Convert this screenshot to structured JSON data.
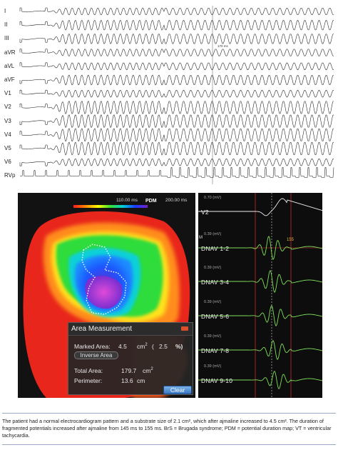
{
  "ecg": {
    "leads": [
      "I",
      "II",
      "III",
      "aVR",
      "aVL",
      "aVF",
      "V1",
      "V2",
      "V3",
      "V4",
      "V5",
      "V6",
      "RVp"
    ],
    "marker_label": "170 ms"
  },
  "pdm_map": {
    "scale_min": "110.00 ms",
    "scale_title": "PDM",
    "scale_max": "200.00 ms",
    "area_dialog": {
      "title": "Area Measurement",
      "marked_area_label": "Marked Area:",
      "marked_area_value": "4.5",
      "marked_area_unit": "cm",
      "marked_area_exponent": "2",
      "marked_area_percent": "2.5",
      "percent_sign": "%)",
      "open_paren": "(",
      "inverse_area_label": "Inverse Area",
      "total_area_label": "Total Area:",
      "total_area_value": "179.7",
      "total_area_unit": "cm",
      "total_area_exponent": "2",
      "perimeter_label": "Perimeter:",
      "perimeter_value": "13.6",
      "perimeter_unit": "cm",
      "clear_label": "Clear"
    }
  },
  "egm": {
    "channels": [
      {
        "label": "V2",
        "mv": "0.70 (mV)"
      },
      {
        "label": "DNAV 1-2",
        "mv": "0.39 (mV)"
      },
      {
        "label": "DNAV 3-4",
        "mv": "0.39 (mV)"
      },
      {
        "label": "DNAV 5-6",
        "mv": "0.39 (mV)"
      },
      {
        "label": "DNAV 7-8",
        "mv": "0.39 (mV)"
      },
      {
        "label": "DNAV 9-10",
        "mv": "0.39 (mV)"
      }
    ],
    "marker_label": "155",
    "side_letter": "M"
  },
  "caption": {
    "text": "The patient had a normal electrocardiogram pattern and a substrate size of 2.1 cm², which after ajmaline increased to 4.5 cm². The duration of fragmented potentials increased after ajmaline from 145 ms to 155 ms. BrS = Brugada syndrome; PDM = potential duration map; VT = ventricular tachycardia."
  },
  "colors": {
    "map_background": "#121212",
    "egm_background": "#0d0d0d",
    "egm_trace": "#7fe05a",
    "marker_red": "#e03030",
    "dialog_bg": "#262626",
    "clear_button": "#3b78c4"
  }
}
